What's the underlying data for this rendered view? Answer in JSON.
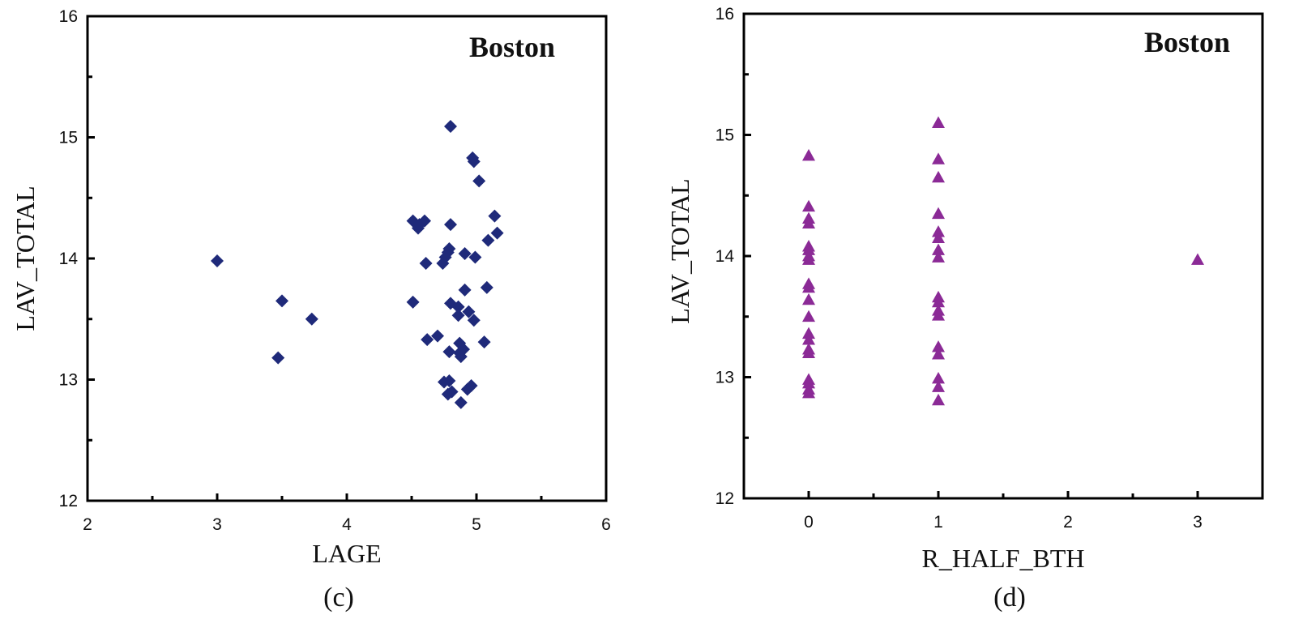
{
  "chart_data": [
    {
      "type": "scatter",
      "title": "Boston",
      "caption": "(c)",
      "xlabel": "LAGE",
      "ylabel": "LAV_TOTAL",
      "xlim": [
        2,
        6
      ],
      "ylim": [
        12,
        16
      ],
      "xticks": [
        2,
        3,
        4,
        5,
        6
      ],
      "yticks": [
        12,
        13,
        14,
        15,
        16
      ],
      "marker": "diamond",
      "color": "#1f2a7a",
      "points": [
        [
          3.0,
          13.98
        ],
        [
          3.47,
          13.18
        ],
        [
          3.5,
          13.65
        ],
        [
          3.73,
          13.5
        ],
        [
          4.51,
          14.31
        ],
        [
          4.55,
          14.25
        ],
        [
          4.56,
          14.28
        ],
        [
          4.6,
          14.31
        ],
        [
          4.51,
          13.64
        ],
        [
          4.61,
          13.96
        ],
        [
          4.62,
          13.33
        ],
        [
          4.7,
          13.36
        ],
        [
          4.74,
          13.96
        ],
        [
          4.75,
          12.98
        ],
        [
          4.76,
          14.01
        ],
        [
          4.78,
          14.05
        ],
        [
          4.79,
          14.08
        ],
        [
          4.8,
          14.28
        ],
        [
          4.8,
          15.09
        ],
        [
          4.8,
          13.63
        ],
        [
          4.79,
          13.23
        ],
        [
          4.79,
          12.99
        ],
        [
          4.78,
          12.88
        ],
        [
          4.81,
          12.9
        ],
        [
          4.86,
          13.6
        ],
        [
          4.86,
          13.53
        ],
        [
          4.87,
          13.3
        ],
        [
          4.87,
          13.22
        ],
        [
          4.88,
          13.19
        ],
        [
          4.9,
          13.25
        ],
        [
          4.88,
          12.81
        ],
        [
          4.91,
          14.04
        ],
        [
          4.91,
          13.74
        ],
        [
          4.93,
          12.92
        ],
        [
          4.96,
          12.95
        ],
        [
          4.94,
          13.56
        ],
        [
          4.97,
          14.83
        ],
        [
          4.98,
          14.8
        ],
        [
          4.98,
          13.49
        ],
        [
          4.99,
          14.01
        ],
        [
          5.02,
          14.64
        ],
        [
          5.06,
          13.31
        ],
        [
          5.08,
          13.76
        ],
        [
          5.09,
          14.15
        ],
        [
          5.14,
          14.35
        ],
        [
          5.16,
          14.21
        ]
      ]
    },
    {
      "type": "scatter",
      "title": "Boston",
      "caption": "(d)",
      "xlabel": "R_HALF_BTH",
      "ylabel": "LAV_TOTAL",
      "xlim": [
        -0.5,
        3.5
      ],
      "ylim": [
        12,
        16
      ],
      "xticks": [
        0,
        1,
        2,
        3
      ],
      "yticks": [
        12,
        13,
        14,
        15,
        16
      ],
      "marker": "triangle",
      "color": "#8b2a96",
      "points": [
        [
          0,
          14.83
        ],
        [
          0,
          14.41
        ],
        [
          0,
          14.31
        ],
        [
          0,
          14.27
        ],
        [
          0,
          14.08
        ],
        [
          0,
          14.05
        ],
        [
          0,
          14.0
        ],
        [
          0,
          13.97
        ],
        [
          0,
          13.77
        ],
        [
          0,
          13.74
        ],
        [
          0,
          13.64
        ],
        [
          0,
          13.5
        ],
        [
          0,
          13.36
        ],
        [
          0,
          13.31
        ],
        [
          0,
          13.23
        ],
        [
          0,
          13.2
        ],
        [
          0,
          12.98
        ],
        [
          0,
          12.95
        ],
        [
          0,
          12.9
        ],
        [
          0,
          12.87
        ],
        [
          1,
          15.1
        ],
        [
          1,
          14.8
        ],
        [
          1,
          14.65
        ],
        [
          1,
          14.35
        ],
        [
          1,
          14.2
        ],
        [
          1,
          14.15
        ],
        [
          1,
          14.05
        ],
        [
          1,
          13.99
        ],
        [
          1,
          13.66
        ],
        [
          1,
          13.62
        ],
        [
          1,
          13.55
        ],
        [
          1,
          13.51
        ],
        [
          1,
          13.25
        ],
        [
          1,
          13.19
        ],
        [
          1,
          12.99
        ],
        [
          1,
          12.92
        ],
        [
          1,
          12.81
        ],
        [
          3,
          13.97
        ]
      ]
    }
  ]
}
